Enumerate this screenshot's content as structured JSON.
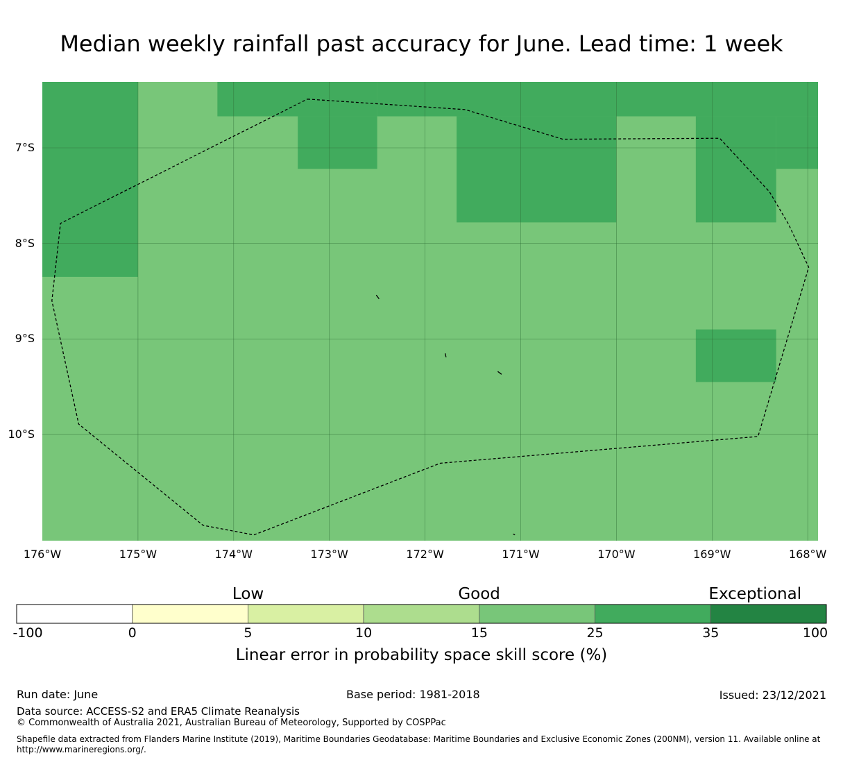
{
  "title": "Median weekly rainfall past accuracy for June. Lead time: 1 week",
  "map": {
    "lon_range": [
      -176,
      -167.8
    ],
    "lat_range": [
      -11.1,
      -6.3
    ],
    "lat_ticks": [
      {
        "value": -7,
        "label": "7°S"
      },
      {
        "value": -8,
        "label": "8°S"
      },
      {
        "value": -9,
        "label": "9°S"
      },
      {
        "value": -10,
        "label": "10°S"
      }
    ],
    "lon_ticks": [
      {
        "value": -176,
        "label": "176°W"
      },
      {
        "value": -175,
        "label": "175°W"
      },
      {
        "value": -174,
        "label": "174°W"
      },
      {
        "value": -173,
        "label": "173°W"
      },
      {
        "value": -172,
        "label": "172°W"
      },
      {
        "value": -171,
        "label": "171°W"
      },
      {
        "value": -170,
        "label": "170°W"
      },
      {
        "value": -169,
        "label": "169°W"
      },
      {
        "value": -168,
        "label": "168°W"
      }
    ],
    "background_class": "15-25",
    "high_skill_cells": [
      {
        "lon": [
          -176,
          -175
        ],
        "lat": [
          -8.35,
          -6.3
        ],
        "class": "25-35"
      },
      {
        "lon": [
          -174.17,
          -172.5
        ],
        "lat": [
          -6.67,
          -6.3
        ],
        "class": "25-35"
      },
      {
        "lon": [
          -173.33,
          -172.5
        ],
        "lat": [
          -7.22,
          -6.67
        ],
        "class": "25-35"
      },
      {
        "lon": [
          -172.5,
          -170.0
        ],
        "lat": [
          -6.67,
          -6.3
        ],
        "class": "25-35"
      },
      {
        "lon": [
          -171.67,
          -170.0
        ],
        "lat": [
          -7.78,
          -6.67
        ],
        "class": "25-35"
      },
      {
        "lon": [
          -170.0,
          -167.8
        ],
        "lat": [
          -6.67,
          -6.3
        ],
        "class": "25-35"
      },
      {
        "lon": [
          -169.17,
          -168.33
        ],
        "lat": [
          -7.78,
          -6.67
        ],
        "class": "25-35"
      },
      {
        "lon": [
          -168.33,
          -167.8
        ],
        "lat": [
          -7.22,
          -6.67
        ],
        "class": "25-35"
      },
      {
        "lon": [
          -169.17,
          -168.33
        ],
        "lat": [
          -9.45,
          -8.9
        ],
        "class": "25-35"
      }
    ],
    "eez_boundary": [
      [
        -173.23,
        -6.49
      ],
      [
        -171.58,
        -6.6
      ],
      [
        -170.56,
        -6.91
      ],
      [
        -168.92,
        -6.9
      ],
      [
        -168.4,
        -7.46
      ],
      [
        -168.2,
        -7.8
      ],
      [
        -167.99,
        -8.25
      ],
      [
        -168.52,
        -10.02
      ],
      [
        -171.84,
        -10.3
      ],
      [
        -173.79,
        -11.05
      ],
      [
        -174.32,
        -10.95
      ],
      [
        -175.62,
        -9.89
      ],
      [
        -175.9,
        -8.6
      ],
      [
        -175.81,
        -7.79
      ],
      [
        -173.23,
        -6.49
      ]
    ],
    "islands": [
      [
        [
          -172.51,
          -8.54
        ],
        [
          -172.48,
          -8.58
        ]
      ],
      [
        [
          -171.79,
          -9.15
        ],
        [
          -171.78,
          -9.19
        ]
      ],
      [
        [
          -171.24,
          -9.34
        ],
        [
          -171.2,
          -9.37
        ]
      ],
      [
        [
          -171.08,
          -11.04
        ],
        [
          -171.06,
          -11.05
        ]
      ]
    ]
  },
  "colorbar": {
    "categories": [
      {
        "label": "Low",
        "value": 5
      },
      {
        "label": "Good",
        "value": 15
      },
      {
        "label": "Exceptional",
        "value": 60
      }
    ],
    "bins": [
      {
        "from": -100,
        "to": 0,
        "color": "#ffffff"
      },
      {
        "from": 0,
        "to": 5,
        "color": "#ffffcc"
      },
      {
        "from": 5,
        "to": 10,
        "color": "#d9f0a3"
      },
      {
        "from": 10,
        "to": 15,
        "color": "#addd8e"
      },
      {
        "from": 15,
        "to": 25,
        "color": "#78c679"
      },
      {
        "from": 25,
        "to": 35,
        "color": "#41ab5d"
      },
      {
        "from": 35,
        "to": 100,
        "color": "#238443"
      }
    ],
    "ticks": [
      "-100",
      "0",
      "5",
      "10",
      "15",
      "25",
      "35",
      "100"
    ],
    "title": "Linear error in probability space skill score (%)"
  },
  "footer": {
    "run_date": "Run date: June",
    "base_period": "Base period: 1981-2018",
    "issued": "Issued: 23/12/2021",
    "data_source": "Data source: ACCESS-S2 and ERA5 Climate Reanalysis",
    "copyright": "© Commonwealth of Australia 2021, Australian Bureau of Meteorology, Supported by COSPPac",
    "shapefile": "Shapefile data extracted from Flanders Marine Institute (2019), Maritime Boundaries Geodatabase: Maritime Boundaries and Exclusive Economic Zones (200NM), version 11. Available online at http://www.marineregions.org/."
  }
}
